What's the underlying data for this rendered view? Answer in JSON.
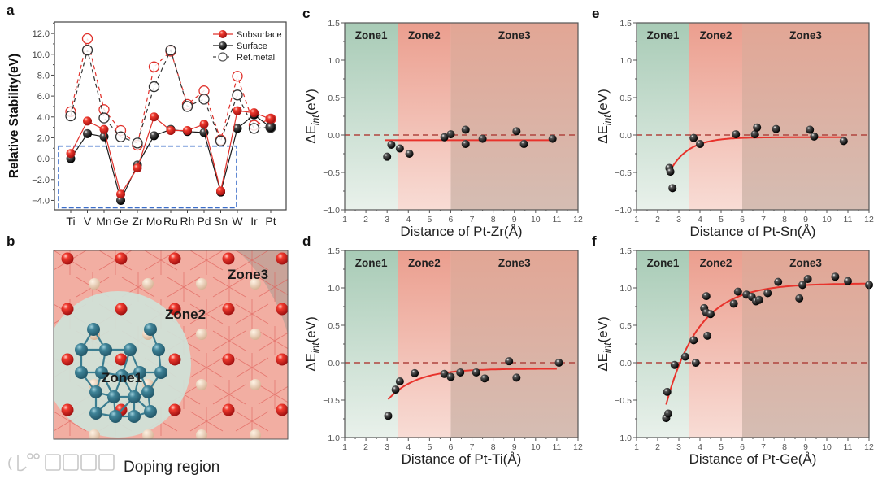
{
  "panel_labels": [
    "a",
    "b",
    "c",
    "d",
    "e",
    "f"
  ],
  "panel_b": {
    "zone_labels": [
      "Zone1",
      "Zone2",
      "Zone3"
    ],
    "caption": "Doping region",
    "watermark": "大数跨境"
  },
  "colors": {
    "subsurface": "#e0302a",
    "surface": "#1a1a1a",
    "highlight_box": "#3a6cc8",
    "fit_line": "#e8332c",
    "zero_line": "#b0443f",
    "zone1": "#a9cdb8",
    "zone2": "#eba090",
    "zone3": "#d9a594"
  },
  "chart_data": [
    {
      "id": "a",
      "type": "line",
      "categories": [
        "Ti",
        "V",
        "Mn",
        "Ge",
        "Zr",
        "Mo",
        "Ru",
        "Rh",
        "Pd",
        "Sn",
        "W",
        "Ir",
        "Pt"
      ],
      "series": [
        {
          "name": "Ref.metal (subsurface)",
          "style": "dashed-open-red",
          "values": [
            4.5,
            11.5,
            4.7,
            2.7,
            1.3,
            8.8,
            10.3,
            5.2,
            6.5,
            1.8,
            7.9,
            3.2,
            3.8
          ]
        },
        {
          "name": "Ref.metal (surface)",
          "style": "dashed-open-black",
          "values": [
            4.1,
            10.4,
            3.9,
            2.1,
            1.5,
            6.9,
            10.4,
            5.0,
            5.7,
            1.7,
            6.1,
            2.9,
            3.0
          ]
        },
        {
          "name": "Surface",
          "style": "solid-filled-black",
          "values": [
            0.0,
            2.4,
            2.1,
            -4.0,
            -0.6,
            2.2,
            2.8,
            2.6,
            2.5,
            -3.2,
            2.9,
            4.2,
            3.0
          ]
        },
        {
          "name": "Subsurface",
          "style": "solid-filled-red",
          "values": [
            0.5,
            3.6,
            2.8,
            -3.4,
            -0.9,
            4.0,
            2.7,
            2.7,
            3.3,
            -3.1,
            4.6,
            4.4,
            3.8
          ]
        }
      ],
      "legend": [
        "Subsurface",
        "Surface",
        "Ref.metal"
      ],
      "legend_position": "top-right",
      "ylabel": "Relative Stability(eV)",
      "xlabel": "",
      "ylim": [
        -4.9,
        13.1
      ],
      "yticks": [
        -4,
        -2,
        0,
        2,
        4,
        6,
        8,
        10,
        12
      ],
      "highlight_box": {
        "from_category": "Ti",
        "to_category": "W",
        "ylim": [
          -4.7,
          1.2
        ]
      }
    },
    {
      "id": "c",
      "type": "scatter",
      "xlabel": "Distance of Pt-Zr(Å)",
      "ylabel": {
        "main": "ΔE",
        "sub": "int",
        "unit": "(eV)"
      },
      "xlim": [
        1,
        12
      ],
      "ylim": [
        -1.0,
        1.5
      ],
      "xticks": [
        1,
        2,
        3,
        4,
        5,
        6,
        7,
        8,
        9,
        10,
        11,
        12
      ],
      "yticks": [
        -1.0,
        -0.5,
        0.0,
        0.5,
        1.0,
        1.5
      ],
      "zones": [
        {
          "label": "Zone1",
          "from": 1,
          "to": 3.5
        },
        {
          "label": "Zone2",
          "from": 3.5,
          "to": 6
        },
        {
          "label": "Zone3",
          "from": 6,
          "to": 12
        }
      ],
      "points": [
        [
          3.0,
          -0.29
        ],
        [
          3.2,
          -0.13
        ],
        [
          3.6,
          -0.18
        ],
        [
          4.05,
          -0.25
        ],
        [
          5.7,
          -0.03
        ],
        [
          6.0,
          0.01
        ],
        [
          6.7,
          0.07
        ],
        [
          6.7,
          -0.12
        ],
        [
          7.5,
          -0.05
        ],
        [
          9.1,
          0.05
        ],
        [
          9.45,
          -0.12
        ],
        [
          10.8,
          -0.05
        ]
      ],
      "fit": {
        "c": -0.07,
        "a": 0.0,
        "k": 1.0,
        "x0": 2.9,
        "x_range": [
          2.9,
          10.8
        ]
      }
    },
    {
      "id": "e",
      "type": "scatter",
      "xlabel": "Distance of Pt-Sn(Å)",
      "ylabel": {
        "main": "ΔE",
        "sub": "int",
        "unit": "(eV)"
      },
      "xlim": [
        1,
        12
      ],
      "ylim": [
        -1.0,
        1.5
      ],
      "xticks": [
        1,
        2,
        3,
        4,
        5,
        6,
        7,
        8,
        9,
        10,
        11,
        12
      ],
      "yticks": [
        -1.0,
        -0.5,
        0.0,
        0.5,
        1.0,
        1.5
      ],
      "zones": [
        {
          "label": "Zone1",
          "from": 1,
          "to": 3.5
        },
        {
          "label": "Zone2",
          "from": 3.5,
          "to": 6
        },
        {
          "label": "Zone3",
          "from": 6,
          "to": 12
        }
      ],
      "points": [
        [
          2.55,
          -0.44
        ],
        [
          2.6,
          -0.49
        ],
        [
          2.7,
          -0.71
        ],
        [
          3.7,
          -0.04
        ],
        [
          4.0,
          -0.12
        ],
        [
          5.7,
          0.01
        ],
        [
          6.6,
          0.01
        ],
        [
          6.7,
          0.1
        ],
        [
          7.6,
          0.08
        ],
        [
          9.2,
          0.07
        ],
        [
          9.4,
          -0.02
        ],
        [
          10.8,
          -0.08
        ]
      ],
      "fit": {
        "c": -0.03,
        "a": 0.44,
        "k": 1.13,
        "x0": 2.6,
        "x_range": [
          2.6,
          10.8
        ]
      }
    },
    {
      "id": "d",
      "type": "scatter",
      "xlabel": "Distance of Pt-Ti(Å)",
      "ylabel": {
        "main": "ΔE",
        "sub": "int",
        "unit": "(eV)"
      },
      "xlim": [
        1,
        12
      ],
      "ylim": [
        -1.0,
        1.5
      ],
      "xticks": [
        1,
        2,
        3,
        4,
        5,
        6,
        7,
        8,
        9,
        10,
        11,
        12
      ],
      "yticks": [
        -1.0,
        -0.5,
        0.0,
        0.5,
        1.0,
        1.5
      ],
      "zones": [
        {
          "label": "Zone1",
          "from": 1,
          "to": 3.5
        },
        {
          "label": "Zone2",
          "from": 3.5,
          "to": 6
        },
        {
          "label": "Zone3",
          "from": 6,
          "to": 12
        }
      ],
      "points": [
        [
          3.05,
          -0.71
        ],
        [
          3.4,
          -0.36
        ],
        [
          3.6,
          -0.25
        ],
        [
          4.3,
          -0.14
        ],
        [
          5.7,
          -0.15
        ],
        [
          6.0,
          -0.19
        ],
        [
          6.45,
          -0.13
        ],
        [
          7.2,
          -0.13
        ],
        [
          7.6,
          -0.21
        ],
        [
          8.75,
          0.02
        ],
        [
          9.1,
          -0.2
        ],
        [
          11.1,
          0.0
        ]
      ],
      "fit": {
        "c": -0.08,
        "a": 0.41,
        "k": 0.75,
        "x0": 3.05,
        "x_range": [
          3.05,
          11.0
        ]
      }
    },
    {
      "id": "f",
      "type": "scatter",
      "xlabel": "Distance of Pt-Ge(Å)",
      "ylabel": {
        "main": "ΔE",
        "sub": "int",
        "unit": "(eV)"
      },
      "xlim": [
        1,
        12
      ],
      "ylim": [
        -1.0,
        1.5
      ],
      "xticks": [
        1,
        2,
        3,
        4,
        5,
        6,
        7,
        8,
        9,
        10,
        11,
        12
      ],
      "yticks": [
        -1.0,
        -0.5,
        0.0,
        0.5,
        1.0,
        1.5
      ],
      "zones": [
        {
          "label": "Zone1",
          "from": 1,
          "to": 3.5
        },
        {
          "label": "Zone2",
          "from": 3.5,
          "to": 6
        },
        {
          "label": "Zone3",
          "from": 6,
          "to": 12
        }
      ],
      "points": [
        [
          2.4,
          -0.74
        ],
        [
          2.5,
          -0.68
        ],
        [
          2.45,
          -0.39
        ],
        [
          2.8,
          -0.03
        ],
        [
          3.3,
          0.08
        ],
        [
          3.7,
          0.3
        ],
        [
          3.8,
          0.0
        ],
        [
          4.2,
          0.73
        ],
        [
          4.3,
          0.89
        ],
        [
          4.3,
          0.67
        ],
        [
          4.35,
          0.36
        ],
        [
          4.5,
          0.65
        ],
        [
          5.6,
          0.79
        ],
        [
          5.8,
          0.95
        ],
        [
          6.2,
          0.91
        ],
        [
          6.45,
          0.88
        ],
        [
          6.65,
          0.82
        ],
        [
          6.8,
          0.84
        ],
        [
          7.2,
          0.93
        ],
        [
          7.7,
          1.08
        ],
        [
          8.7,
          0.86
        ],
        [
          8.85,
          1.04
        ],
        [
          9.1,
          1.12
        ],
        [
          10.4,
          1.15
        ],
        [
          11.0,
          1.09
        ],
        [
          12.0,
          1.04
        ]
      ],
      "fit": {
        "c": 1.06,
        "a": 1.62,
        "k": 0.65,
        "x0": 2.4,
        "x_range": [
          2.4,
          12.0
        ]
      }
    }
  ]
}
